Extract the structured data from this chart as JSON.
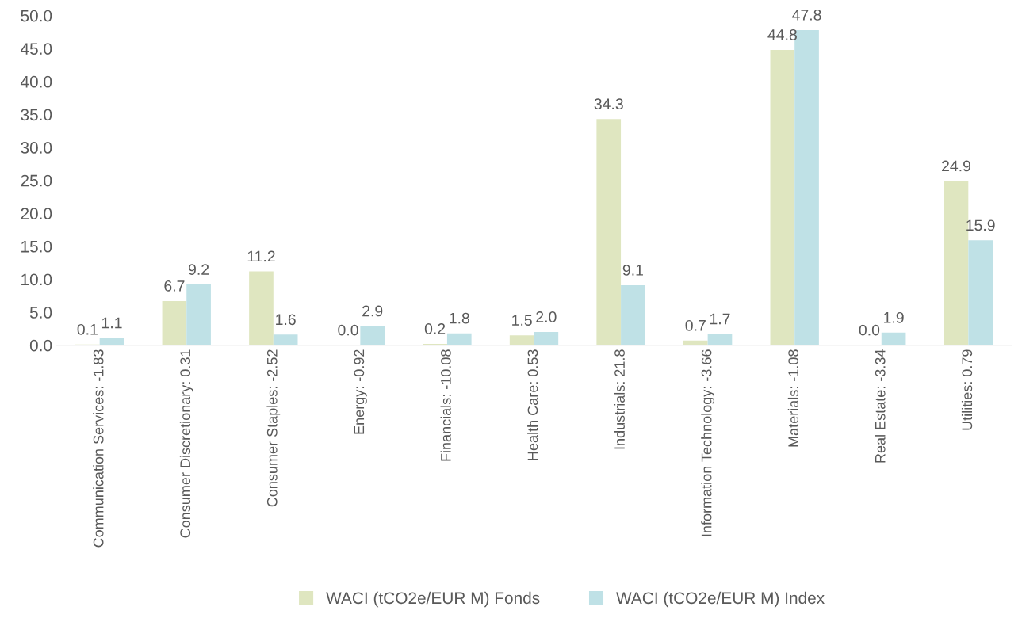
{
  "chart_data": {
    "type": "bar",
    "categories": [
      "Communication Services: -1.83",
      "Consumer Discretionary: 0.31",
      "Consumer Staples: -2.52",
      "Energy: -0.92",
      "Financials: -10.08",
      "Health Care: 0.53",
      "Industrials: 21.8",
      "Information Technology: -3.66",
      "Materials: -1.08",
      "Real Estate: -3.34",
      "Utilities: 0.79"
    ],
    "series": [
      {
        "name": "WACI (tCO2e/EUR M) Fonds",
        "color": "#dfe6c0",
        "values": [
          0.1,
          6.7,
          11.2,
          0.0,
          0.2,
          1.5,
          34.3,
          0.7,
          44.8,
          0.0,
          24.9
        ],
        "value_labels": [
          "0.1",
          "6.7",
          "11.2",
          "0.0",
          "0.2",
          "1.5",
          "34.3",
          "0.7",
          "44.8",
          "0.0",
          "24.9"
        ]
      },
      {
        "name": "WACI (tCO2e/EUR M) Index",
        "color": "#bfe1e6",
        "values": [
          1.1,
          9.2,
          1.6,
          2.9,
          1.8,
          2.0,
          9.1,
          1.7,
          47.8,
          1.9,
          15.9
        ],
        "value_labels": [
          "1.1",
          "9.2",
          "1.6",
          "2.9",
          "1.8",
          "2.0",
          "9.1",
          "1.7",
          "47.8",
          "1.9",
          "15.9"
        ]
      }
    ],
    "ylim": [
      0,
      50
    ],
    "yticks": [
      {
        "value": 0,
        "label": "0.0"
      },
      {
        "value": 5,
        "label": "5.0"
      },
      {
        "value": 10,
        "label": "10.0"
      },
      {
        "value": 15,
        "label": "15.0"
      },
      {
        "value": 20,
        "label": "20.0"
      },
      {
        "value": 25,
        "label": "25.0"
      },
      {
        "value": 30,
        "label": "30.0"
      },
      {
        "value": 35,
        "label": "35.0"
      },
      {
        "value": 40,
        "label": "40.0"
      },
      {
        "value": 45,
        "label": "45.0"
      },
      {
        "value": 50,
        "label": "50.0"
      }
    ],
    "grid": false,
    "legend": "bottom"
  }
}
